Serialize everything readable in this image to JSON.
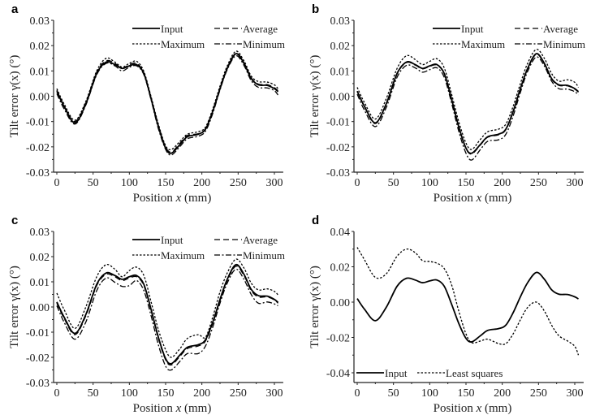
{
  "chart_data": [
    {
      "panel": "a",
      "type": "line",
      "xlabel": "Position x (mm)",
      "ylabel": "Tilt error γ(x) (°)",
      "xlim": [
        0,
        310
      ],
      "ylim": [
        -0.03,
        0.03
      ],
      "xticks": [
        0,
        50,
        100,
        150,
        200,
        250,
        300
      ],
      "yticks": [
        0.03,
        0.02,
        0.01,
        0.0,
        -0.01,
        -0.02,
        -0.03
      ],
      "ytick_labels": [
        "0.03",
        "0.02",
        "0.01",
        "0.00",
        "-0.01",
        "-0.02",
        "-0.03"
      ],
      "legend_position": "top-right",
      "x": [
        0,
        10,
        25,
        40,
        55,
        68,
        80,
        90,
        100,
        110,
        120,
        130,
        140,
        150,
        158,
        170,
        180,
        195,
        205,
        215,
        225,
        235,
        247,
        258,
        268,
        278,
        290,
        300,
        305
      ],
      "series": [
        {
          "name": "Input",
          "style": "solid",
          "values": [
            0.002,
            -0.004,
            -0.0105,
            -0.003,
            0.009,
            0.0135,
            0.0125,
            0.011,
            0.012,
            0.0125,
            0.009,
            -0.001,
            -0.012,
            -0.0205,
            -0.0225,
            -0.019,
            -0.016,
            -0.015,
            -0.013,
            -0.006,
            0.003,
            0.011,
            0.0168,
            0.013,
            0.007,
            0.0045,
            0.0043,
            0.003,
            0.0018
          ]
        },
        {
          "name": "Average",
          "style": "dashed",
          "values": [
            0.0025,
            -0.0038,
            -0.01,
            -0.0025,
            0.0095,
            0.014,
            0.013,
            0.011,
            0.0125,
            0.013,
            0.0092,
            -0.0008,
            -0.0115,
            -0.02,
            -0.022,
            -0.0185,
            -0.0155,
            -0.0148,
            -0.0128,
            -0.0058,
            0.0033,
            0.0112,
            0.017,
            0.0133,
            0.0073,
            0.0048,
            0.0046,
            0.0034,
            0.0022
          ]
        },
        {
          "name": "Maximum",
          "style": "dotted",
          "values": [
            0.003,
            -0.003,
            -0.0095,
            -0.002,
            0.01,
            0.015,
            0.0135,
            0.0115,
            0.013,
            0.0138,
            0.0098,
            -0.0002,
            -0.011,
            -0.0195,
            -0.021,
            -0.0178,
            -0.015,
            -0.014,
            -0.0122,
            -0.005,
            0.004,
            0.012,
            0.0178,
            0.014,
            0.008,
            0.0058,
            0.0056,
            0.0045,
            0.003
          ]
        },
        {
          "name": "Minimum",
          "style": "dashdot",
          "values": [
            0.001,
            -0.005,
            -0.011,
            -0.0035,
            0.0085,
            0.013,
            0.012,
            0.01,
            0.0115,
            0.012,
            0.0085,
            -0.0015,
            -0.0128,
            -0.021,
            -0.0232,
            -0.0198,
            -0.0168,
            -0.0158,
            -0.0138,
            -0.0068,
            0.0025,
            0.0105,
            0.016,
            0.0122,
            0.0062,
            0.0035,
            0.0033,
            0.0022,
            0.0005
          ]
        }
      ]
    },
    {
      "panel": "b",
      "type": "line",
      "xlabel": "Position x (mm)",
      "ylabel": "Tilt error γ(x) (°)",
      "xlim": [
        0,
        310
      ],
      "ylim": [
        -0.03,
        0.03
      ],
      "xticks": [
        0,
        50,
        100,
        150,
        200,
        250,
        300
      ],
      "yticks": [
        0.03,
        0.02,
        0.01,
        0.0,
        -0.01,
        -0.02,
        -0.03
      ],
      "ytick_labels": [
        "0.03",
        "0.02",
        "0.01",
        "0.00",
        "-0.01",
        "-0.02",
        "-0.03"
      ],
      "legend_position": "top-right",
      "x": [
        0,
        10,
        25,
        40,
        55,
        68,
        80,
        90,
        100,
        110,
        120,
        130,
        140,
        150,
        158,
        170,
        180,
        195,
        205,
        215,
        225,
        235,
        247,
        258,
        268,
        278,
        290,
        300,
        305
      ],
      "series": [
        {
          "name": "Input",
          "style": "solid",
          "values": [
            0.002,
            -0.004,
            -0.0105,
            -0.003,
            0.009,
            0.0135,
            0.0125,
            0.011,
            0.012,
            0.0125,
            0.009,
            -0.001,
            -0.012,
            -0.0205,
            -0.0225,
            -0.019,
            -0.016,
            -0.015,
            -0.013,
            -0.006,
            0.003,
            0.011,
            0.0168,
            0.013,
            0.007,
            0.0045,
            0.0043,
            0.003,
            0.0018
          ]
        },
        {
          "name": "Average",
          "style": "dashed",
          "values": [
            0.002,
            -0.0042,
            -0.0108,
            -0.0032,
            0.0088,
            0.0133,
            0.0123,
            0.0108,
            0.0118,
            0.0123,
            0.0088,
            -0.0012,
            -0.0122,
            -0.0207,
            -0.0228,
            -0.0192,
            -0.0162,
            -0.0152,
            -0.0132,
            -0.0062,
            0.0028,
            0.0108,
            0.0166,
            0.0128,
            0.0068,
            0.0043,
            0.0041,
            0.0028,
            0.0016
          ]
        },
        {
          "name": "Maximum",
          "style": "dotted",
          "values": [
            0.0035,
            -0.0025,
            -0.009,
            -0.001,
            0.011,
            0.016,
            0.0145,
            0.0125,
            0.0138,
            0.0148,
            0.0112,
            0.001,
            -0.01,
            -0.0185,
            -0.021,
            -0.017,
            -0.014,
            -0.013,
            -0.011,
            -0.004,
            0.005,
            0.013,
            0.0185,
            0.015,
            0.009,
            0.006,
            0.0065,
            0.0055,
            0.0035
          ]
        },
        {
          "name": "Minimum",
          "style": "dashdot",
          "values": [
            0.0008,
            -0.0055,
            -0.012,
            -0.0045,
            0.0075,
            0.0122,
            0.0112,
            0.0095,
            0.0105,
            0.0112,
            0.0075,
            -0.0025,
            -0.0138,
            -0.0225,
            -0.0252,
            -0.021,
            -0.0178,
            -0.0172,
            -0.015,
            -0.0078,
            0.0015,
            0.0098,
            0.0155,
            0.012,
            0.006,
            0.003,
            0.0028,
            0.0018,
            0.0005
          ]
        }
      ]
    },
    {
      "panel": "c",
      "type": "line",
      "xlabel": "Position x (mm)",
      "ylabel": "Tilt error γ(x) (°)",
      "xlim": [
        0,
        310
      ],
      "ylim": [
        -0.03,
        0.03
      ],
      "xticks": [
        0,
        50,
        100,
        150,
        200,
        250,
        300
      ],
      "yticks": [
        0.03,
        0.02,
        0.01,
        0.0,
        -0.01,
        -0.02,
        -0.03
      ],
      "ytick_labels": [
        "0.03",
        "0.02",
        "0.01",
        "0.00",
        "-0.01",
        "-0.02",
        "-0.03"
      ],
      "legend_position": "top-right",
      "x": [
        0,
        10,
        25,
        40,
        55,
        68,
        80,
        90,
        100,
        110,
        120,
        130,
        140,
        150,
        158,
        170,
        180,
        195,
        205,
        215,
        225,
        235,
        247,
        258,
        268,
        278,
        290,
        300,
        305
      ],
      "series": [
        {
          "name": "Input",
          "style": "solid",
          "values": [
            0.002,
            -0.004,
            -0.0105,
            -0.003,
            0.009,
            0.0135,
            0.0125,
            0.011,
            0.012,
            0.0125,
            0.009,
            -0.001,
            -0.012,
            -0.0205,
            -0.0225,
            -0.019,
            -0.016,
            -0.015,
            -0.013,
            -0.006,
            0.003,
            0.011,
            0.0168,
            0.013,
            0.007,
            0.0045,
            0.0043,
            0.003,
            0.0018
          ]
        },
        {
          "name": "Average",
          "style": "dashed",
          "values": [
            0.0015,
            -0.0045,
            -0.011,
            -0.0035,
            0.0085,
            0.013,
            0.012,
            0.0105,
            0.0115,
            0.012,
            0.0085,
            -0.0015,
            -0.0125,
            -0.021,
            -0.023,
            -0.0195,
            -0.0165,
            -0.0155,
            -0.0135,
            -0.0065,
            0.0025,
            0.0105,
            0.0162,
            0.0125,
            0.0065,
            0.004,
            0.004,
            0.0028,
            0.0015
          ]
        },
        {
          "name": "Maximum",
          "style": "dotted",
          "values": [
            0.0055,
            -0.001,
            -0.0085,
            0.0,
            0.012,
            0.0168,
            0.015,
            0.012,
            0.0145,
            0.0158,
            0.0125,
            0.002,
            -0.009,
            -0.017,
            -0.02,
            -0.0165,
            -0.0125,
            -0.011,
            -0.012,
            -0.004,
            0.006,
            0.0135,
            0.019,
            0.0155,
            0.0095,
            0.0068,
            0.0072,
            0.0062,
            0.0048
          ]
        },
        {
          "name": "Minimum",
          "style": "dashdot",
          "values": [
            0.0005,
            -0.006,
            -0.0128,
            -0.006,
            0.0065,
            0.0115,
            0.0098,
            0.0082,
            0.0085,
            0.0105,
            0.0065,
            -0.0035,
            -0.015,
            -0.0235,
            -0.025,
            -0.0215,
            -0.0185,
            -0.0185,
            -0.0155,
            -0.008,
            0.0015,
            0.0095,
            0.015,
            0.011,
            0.005,
            0.0015,
            0.002,
            0.0012,
            0.0005
          ]
        }
      ]
    },
    {
      "panel": "d",
      "type": "line",
      "xlabel": "Position x (mm)",
      "ylabel": "Tilt error γ(x) (°)",
      "xlim": [
        0,
        310
      ],
      "ylim": [
        -0.0455,
        0.04
      ],
      "xticks": [
        0,
        50,
        100,
        150,
        200,
        250,
        300
      ],
      "yticks": [
        0.04,
        0.02,
        0.0,
        -0.02,
        -0.04
      ],
      "ytick_labels": [
        "0.04",
        "0.02",
        "0.00",
        "-0.02",
        "-0.04"
      ],
      "legend_position": "bottom-left",
      "x": [
        0,
        10,
        25,
        40,
        55,
        68,
        80,
        90,
        100,
        110,
        120,
        130,
        140,
        150,
        158,
        170,
        180,
        195,
        205,
        215,
        225,
        235,
        247,
        258,
        268,
        278,
        290,
        300,
        305
      ],
      "series": [
        {
          "name": "Input",
          "style": "solid",
          "values": [
            0.002,
            -0.004,
            -0.0105,
            -0.003,
            0.009,
            0.0135,
            0.0125,
            0.011,
            0.012,
            0.0125,
            0.009,
            -0.001,
            -0.012,
            -0.0205,
            -0.0225,
            -0.019,
            -0.016,
            -0.015,
            -0.013,
            -0.006,
            0.003,
            0.011,
            0.0168,
            0.013,
            0.007,
            0.0045,
            0.0043,
            0.003,
            0.0018
          ]
        },
        {
          "name": "Least squares",
          "style": "dotted",
          "values": [
            0.031,
            0.024,
            0.014,
            0.016,
            0.026,
            0.03,
            0.028,
            0.0235,
            0.023,
            0.022,
            0.019,
            0.01,
            -0.005,
            -0.018,
            -0.023,
            -0.022,
            -0.021,
            -0.0235,
            -0.0235,
            -0.018,
            -0.01,
            -0.003,
            0.0,
            -0.005,
            -0.013,
            -0.019,
            -0.022,
            -0.025,
            -0.03
          ]
        }
      ]
    }
  ]
}
